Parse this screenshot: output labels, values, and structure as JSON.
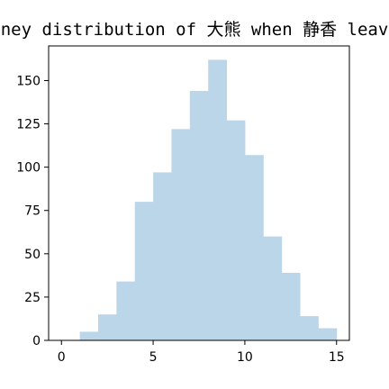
{
  "chart_data": {
    "type": "bar",
    "title": "Money distribution of 大熊 when 静香 leaves",
    "xlabel": "",
    "ylabel": "",
    "bin_edges": [
      1,
      2,
      3,
      4,
      5,
      6,
      7,
      8,
      9,
      10,
      11,
      12,
      13,
      14,
      15
    ],
    "values": [
      5,
      15,
      34,
      80,
      97,
      122,
      144,
      162,
      127,
      107,
      60,
      39,
      14,
      7
    ],
    "xlim": [
      -0.7,
      15.7
    ],
    "ylim": [
      0,
      170
    ],
    "xticks": [
      0,
      5,
      10,
      15
    ],
    "yticks": [
      0,
      25,
      50,
      75,
      100,
      125,
      150
    ],
    "bar_color": "#bcd6e9",
    "grid": false,
    "legend": "none"
  }
}
